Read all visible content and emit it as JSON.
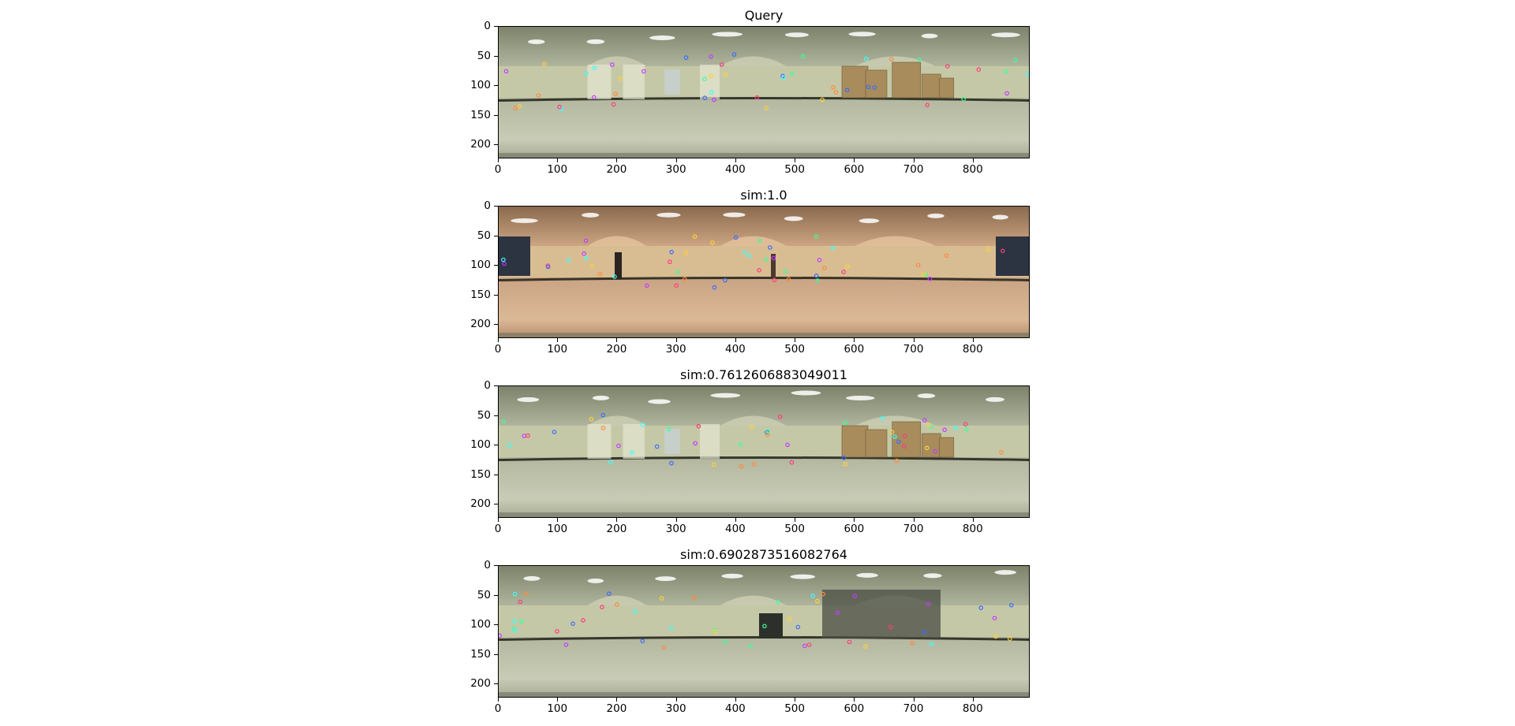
{
  "panels": [
    {
      "title": "Query",
      "scene": "storage",
      "tint": "green"
    },
    {
      "title": "sim:1.0",
      "scene": "corridor",
      "tint": "warm"
    },
    {
      "title": "sim:0.7612606883049011",
      "scene": "storage",
      "tint": "green"
    },
    {
      "title": "sim:0.6902873516082764",
      "scene": "hall",
      "tint": "green"
    }
  ],
  "axes": {
    "x_ticks": [
      "0",
      "100",
      "200",
      "300",
      "400",
      "500",
      "600",
      "700",
      "800"
    ],
    "y_ticks": [
      "0",
      "50",
      "100",
      "150",
      "200"
    ],
    "x_range": [
      0,
      896
    ],
    "y_range": [
      0,
      224
    ]
  },
  "colors": {
    "green_ceiling": "#b9bfa6",
    "green_wall": "#c5c8a6",
    "green_floor": "#b3b79e",
    "warm_ceiling": "#d9b18c",
    "warm_wall": "#d8bd93",
    "warm_floor": "#c9a484",
    "baseboard": "#1e2018"
  }
}
